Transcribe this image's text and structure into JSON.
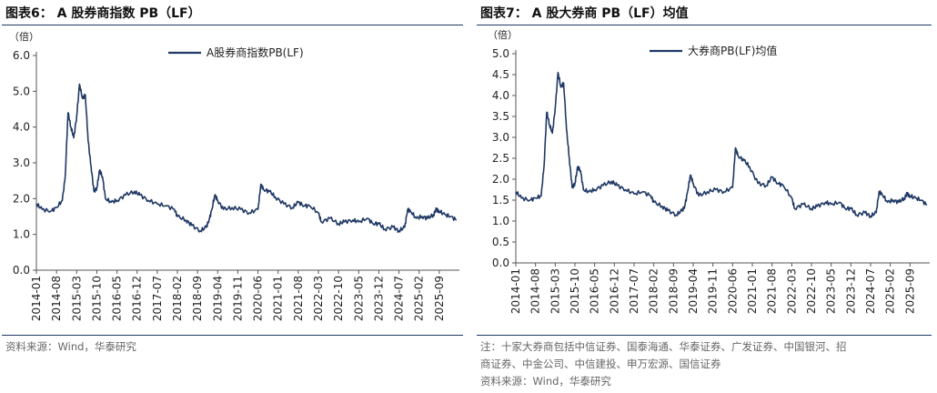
{
  "left_panel": {
    "title": "图表6： A 股券商指数 PB（LF）",
    "source": "资料来源：Wind，华泰研究"
  },
  "right_panel": {
    "title": "图表7： A 股大券商 PB（LF）均值",
    "note_line1": "注：十家大券商包括中信证券、国泰海通、华泰证券、广发证券、中国银河、招",
    "note_line2": "商证券、中金公司、中信建投、申万宏源、国信证券",
    "source": "资料来源：Wind，华泰研究"
  },
  "chart_data": [
    {
      "type": "line",
      "unit_label": "（倍）",
      "ylim": [
        0,
        6
      ],
      "y_ticks": [
        "0.0",
        "1.0",
        "2.0",
        "3.0",
        "4.0",
        "5.0",
        "6.0"
      ],
      "xlim": [
        "2014-01",
        "2026-04"
      ],
      "x_ticks": [
        "2014-01",
        "2014-08",
        "2015-03",
        "2015-10",
        "2016-05",
        "2016-12",
        "2017-07",
        "2018-02",
        "2018-09",
        "2019-04",
        "2019-11",
        "2020-06",
        "2021-01",
        "2021-08",
        "2022-03",
        "2022-10",
        "2023-05",
        "2023-12",
        "2024-07",
        "2025-02",
        "2025-09"
      ],
      "legend_position": "top",
      "series": [
        {
          "name": "A股券商指数PB(LF)",
          "color": "#1f3864",
          "points": [
            [
              "2014-01",
              1.85
            ],
            [
              "2014-03",
              1.7
            ],
            [
              "2014-06",
              1.65
            ],
            [
              "2014-08",
              1.75
            ],
            [
              "2014-10",
              1.95
            ],
            [
              "2014-11",
              2.6
            ],
            [
              "2014-12",
              4.4
            ],
            [
              "2015-01",
              4.0
            ],
            [
              "2015-02",
              3.7
            ],
            [
              "2015-03",
              4.3
            ],
            [
              "2015-04",
              5.2
            ],
            [
              "2015-05",
              4.8
            ],
            [
              "2015-06",
              4.9
            ],
            [
              "2015-07",
              3.6
            ],
            [
              "2015-08",
              2.9
            ],
            [
              "2015-09",
              2.2
            ],
            [
              "2015-10",
              2.3
            ],
            [
              "2015-11",
              2.8
            ],
            [
              "2015-12",
              2.6
            ],
            [
              "2016-01",
              2.0
            ],
            [
              "2016-03",
              1.9
            ],
            [
              "2016-05",
              1.95
            ],
            [
              "2016-08",
              2.1
            ],
            [
              "2016-11",
              2.2
            ],
            [
              "2017-01",
              2.1
            ],
            [
              "2017-04",
              1.95
            ],
            [
              "2017-07",
              1.85
            ],
            [
              "2017-10",
              1.8
            ],
            [
              "2018-01",
              1.7
            ],
            [
              "2018-02",
              1.5
            ],
            [
              "2018-05",
              1.4
            ],
            [
              "2018-07",
              1.25
            ],
            [
              "2018-10",
              1.1
            ],
            [
              "2018-12",
              1.2
            ],
            [
              "2019-01",
              1.4
            ],
            [
              "2019-02",
              1.7
            ],
            [
              "2019-03",
              2.1
            ],
            [
              "2019-04",
              1.95
            ],
            [
              "2019-06",
              1.7
            ],
            [
              "2019-09",
              1.75
            ],
            [
              "2019-12",
              1.7
            ],
            [
              "2020-03",
              1.6
            ],
            [
              "2020-06",
              1.7
            ],
            [
              "2020-07",
              2.4
            ],
            [
              "2020-08",
              2.25
            ],
            [
              "2020-10",
              2.2
            ],
            [
              "2020-12",
              2.05
            ],
            [
              "2021-03",
              1.85
            ],
            [
              "2021-06",
              1.75
            ],
            [
              "2021-08",
              1.9
            ],
            [
              "2021-10",
              1.8
            ],
            [
              "2021-12",
              1.8
            ],
            [
              "2022-03",
              1.6
            ],
            [
              "2022-04",
              1.35
            ],
            [
              "2022-07",
              1.45
            ],
            [
              "2022-10",
              1.3
            ],
            [
              "2022-12",
              1.35
            ],
            [
              "2023-03",
              1.4
            ],
            [
              "2023-05",
              1.35
            ],
            [
              "2023-08",
              1.45
            ],
            [
              "2023-10",
              1.3
            ],
            [
              "2023-12",
              1.3
            ],
            [
              "2024-02",
              1.15
            ],
            [
              "2024-05",
              1.2
            ],
            [
              "2024-07",
              1.1
            ],
            [
              "2024-09",
              1.2
            ],
            [
              "2024-10",
              1.7
            ],
            [
              "2024-11",
              1.65
            ],
            [
              "2025-01",
              1.45
            ],
            [
              "2025-03",
              1.5
            ],
            [
              "2025-05",
              1.45
            ],
            [
              "2025-07",
              1.55
            ],
            [
              "2025-08",
              1.7
            ],
            [
              "2025-09",
              1.65
            ],
            [
              "2025-11",
              1.55
            ],
            [
              "2026-01",
              1.5
            ],
            [
              "2026-03",
              1.4
            ]
          ]
        }
      ]
    },
    {
      "type": "line",
      "unit_label": "（倍）",
      "ylim": [
        0,
        5
      ],
      "y_ticks": [
        "0.0",
        "0.5",
        "1.0",
        "1.5",
        "2.0",
        "2.5",
        "3.0",
        "3.5",
        "4.0",
        "4.5",
        "5.0"
      ],
      "xlim": [
        "2014-01",
        "2026-04"
      ],
      "x_ticks": [
        "2014-01",
        "2014-08",
        "2015-03",
        "2015-10",
        "2016-05",
        "2016-12",
        "2017-07",
        "2018-02",
        "2018-09",
        "2019-04",
        "2019-11",
        "2020-06",
        "2021-01",
        "2021-08",
        "2022-03",
        "2022-10",
        "2023-05",
        "2023-12",
        "2024-07",
        "2025-02",
        "2025-09"
      ],
      "legend_position": "top",
      "series": [
        {
          "name": "大券商PB(LF)均值",
          "color": "#1f3864",
          "points": [
            [
              "2014-01",
              1.7
            ],
            [
              "2014-03",
              1.55
            ],
            [
              "2014-06",
              1.5
            ],
            [
              "2014-08",
              1.55
            ],
            [
              "2014-10",
              1.6
            ],
            [
              "2014-11",
              2.3
            ],
            [
              "2014-12",
              3.6
            ],
            [
              "2015-01",
              3.3
            ],
            [
              "2015-02",
              3.1
            ],
            [
              "2015-03",
              3.7
            ],
            [
              "2015-04",
              4.55
            ],
            [
              "2015-05",
              4.2
            ],
            [
              "2015-06",
              4.3
            ],
            [
              "2015-07",
              3.2
            ],
            [
              "2015-08",
              2.5
            ],
            [
              "2015-09",
              1.8
            ],
            [
              "2015-10",
              1.9
            ],
            [
              "2015-11",
              2.3
            ],
            [
              "2015-12",
              2.2
            ],
            [
              "2016-01",
              1.75
            ],
            [
              "2016-03",
              1.7
            ],
            [
              "2016-05",
              1.75
            ],
            [
              "2016-08",
              1.85
            ],
            [
              "2016-11",
              1.95
            ],
            [
              "2017-01",
              1.85
            ],
            [
              "2017-04",
              1.75
            ],
            [
              "2017-07",
              1.65
            ],
            [
              "2017-10",
              1.7
            ],
            [
              "2018-01",
              1.6
            ],
            [
              "2018-02",
              1.45
            ],
            [
              "2018-05",
              1.35
            ],
            [
              "2018-07",
              1.25
            ],
            [
              "2018-10",
              1.15
            ],
            [
              "2018-12",
              1.25
            ],
            [
              "2019-01",
              1.35
            ],
            [
              "2019-02",
              1.7
            ],
            [
              "2019-03",
              2.1
            ],
            [
              "2019-04",
              1.9
            ],
            [
              "2019-06",
              1.6
            ],
            [
              "2019-09",
              1.7
            ],
            [
              "2019-12",
              1.75
            ],
            [
              "2020-03",
              1.7
            ],
            [
              "2020-06",
              1.8
            ],
            [
              "2020-07",
              2.75
            ],
            [
              "2020-08",
              2.55
            ],
            [
              "2020-10",
              2.45
            ],
            [
              "2020-12",
              2.3
            ],
            [
              "2021-03",
              1.9
            ],
            [
              "2021-06",
              1.85
            ],
            [
              "2021-08",
              2.05
            ],
            [
              "2021-10",
              1.9
            ],
            [
              "2021-12",
              1.85
            ],
            [
              "2022-03",
              1.55
            ],
            [
              "2022-04",
              1.3
            ],
            [
              "2022-07",
              1.4
            ],
            [
              "2022-10",
              1.3
            ],
            [
              "2022-12",
              1.35
            ],
            [
              "2023-03",
              1.45
            ],
            [
              "2023-05",
              1.4
            ],
            [
              "2023-08",
              1.45
            ],
            [
              "2023-10",
              1.3
            ],
            [
              "2023-12",
              1.3
            ],
            [
              "2024-02",
              1.15
            ],
            [
              "2024-05",
              1.2
            ],
            [
              "2024-07",
              1.12
            ],
            [
              "2024-09",
              1.2
            ],
            [
              "2024-10",
              1.7
            ],
            [
              "2024-11",
              1.65
            ],
            [
              "2025-01",
              1.45
            ],
            [
              "2025-03",
              1.5
            ],
            [
              "2025-05",
              1.45
            ],
            [
              "2025-07",
              1.55
            ],
            [
              "2025-08",
              1.65
            ],
            [
              "2025-09",
              1.6
            ],
            [
              "2025-11",
              1.55
            ],
            [
              "2026-01",
              1.5
            ],
            [
              "2026-03",
              1.38
            ]
          ]
        }
      ]
    }
  ]
}
